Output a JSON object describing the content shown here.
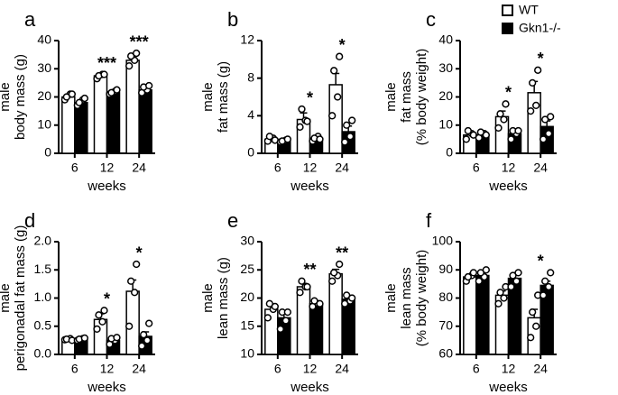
{
  "chart_data": [
    {
      "type": "bar",
      "panel": "a",
      "ylabel": [
        "male",
        "body mass (g)"
      ],
      "xlabel": "weeks",
      "categories": [
        "6",
        "12",
        "24"
      ],
      "ylim": [
        0,
        40
      ],
      "yticks": [
        0,
        10,
        20,
        30,
        40
      ],
      "series": [
        {
          "name": "WT",
          "color": "#ffffff",
          "values": [
            20,
            27.5,
            33
          ],
          "errors": [
            0.6,
            0.5,
            1.2
          ],
          "points": [
            [
              19,
              21,
              20,
              21
            ],
            [
              26.5,
              28,
              27.5,
              28
            ],
            [
              31,
              33,
              34.5,
              35.5
            ]
          ]
        },
        {
          "name": "Gkn1-/-",
          "color": "#000000",
          "values": [
            18,
            21.5,
            22.5
          ],
          "errors": [
            0.7,
            0.4,
            0.7
          ],
          "points": [
            [
              17,
              19,
              18,
              19.5
            ],
            [
              21,
              22,
              21.5,
              22.5
            ],
            [
              21.5,
              22.5,
              23.5,
              24
            ]
          ]
        }
      ],
      "annotations": [
        {
          "x": "12",
          "text": "***"
        },
        {
          "x": "24",
          "text": "***"
        }
      ]
    },
    {
      "type": "bar",
      "panel": "b",
      "ylabel": [
        "male",
        "fat mass (g)"
      ],
      "xlabel": "weeks",
      "categories": [
        "6",
        "12",
        "24"
      ],
      "ylim": [
        0,
        12
      ],
      "yticks": [
        0,
        4,
        8,
        12
      ],
      "series": [
        {
          "name": "WT",
          "color": "#ffffff",
          "values": [
            1.5,
            3.6,
            7.3
          ],
          "errors": [
            0.15,
            0.7,
            1.2
          ],
          "points": [
            [
              1.3,
              1.6,
              1.8,
              1.4
            ],
            [
              2.8,
              3.5,
              4.7,
              3.4
            ],
            [
              4,
              6,
              8.8,
              10.3
            ]
          ]
        },
        {
          "name": "Gkn1-/-",
          "color": "#000000",
          "values": [
            1.3,
            1.6,
            2.3
          ],
          "errors": [
            0.1,
            0.2,
            0.6
          ],
          "points": [
            [
              1.2,
              1.4,
              1.3,
              1.5
            ],
            [
              1.3,
              1.8,
              1.6,
              1.5
            ],
            [
              1.2,
              1.8,
              3,
              3.5
            ]
          ]
        }
      ],
      "annotations": [
        {
          "x": "12",
          "text": "*"
        },
        {
          "x": "24",
          "text": "*"
        }
      ]
    },
    {
      "type": "bar",
      "panel": "c",
      "ylabel": [
        "male",
        "fat mass",
        "(% body weight)"
      ],
      "xlabel": "weeks",
      "categories": [
        "6",
        "12",
        "24"
      ],
      "ylim": [
        0,
        40
      ],
      "yticks": [
        0,
        10,
        20,
        30,
        40
      ],
      "series": [
        {
          "name": "WT",
          "color": "#ffffff",
          "values": [
            6.5,
            13,
            21.5
          ],
          "errors": [
            1,
            2,
            4
          ],
          "points": [
            [
              5,
              7,
              8,
              6.5
            ],
            [
              9,
              12,
              14,
              17.5
            ],
            [
              15,
              17,
              25,
              29.5
            ]
          ]
        },
        {
          "name": "Gkn1-/-",
          "color": "#000000",
          "values": [
            6.5,
            7,
            9.5
          ],
          "errors": [
            0.8,
            1,
            2
          ],
          "points": [
            [
              5.5,
              7,
              7.5,
              6.5
            ],
            [
              5,
              7,
              8,
              8
            ],
            [
              5,
              7,
              12,
              13
            ]
          ]
        }
      ],
      "annotations": [
        {
          "x": "12",
          "text": "*"
        },
        {
          "x": "24",
          "text": "*"
        }
      ]
    },
    {
      "type": "bar",
      "panel": "d",
      "ylabel": [
        "male",
        "perigonadal fat mass (g)"
      ],
      "xlabel": "weeks",
      "categories": [
        "6",
        "12",
        "24"
      ],
      "ylim": [
        0,
        2
      ],
      "yticks": [
        {
          "value": 0,
          "label": "0.0"
        },
        {
          "value": 0.5,
          "label": "0.5"
        },
        {
          "value": 1,
          "label": "1.0"
        },
        {
          "value": 1.5,
          "label": "1.5"
        },
        {
          "value": 2,
          "label": "2.0"
        }
      ],
      "series": [
        {
          "name": "WT",
          "color": "#ffffff",
          "values": [
            0.27,
            0.62,
            1.12
          ],
          "errors": [
            0.02,
            0.1,
            0.2
          ],
          "points": [
            [
              0.26,
              0.28,
              0.27,
              0.25
            ],
            [
              0.45,
              0.58,
              0.7,
              0.78
            ],
            [
              0.5,
              1.1,
              1.3,
              1.6
            ]
          ]
        },
        {
          "name": "Gkn1-/-",
          "color": "#000000",
          "values": [
            0.27,
            0.25,
            0.32
          ],
          "errors": [
            0.02,
            0.04,
            0.08
          ],
          "points": [
            [
              0.25,
              0.28,
              0.27,
              0.29
            ],
            [
              0.18,
              0.25,
              0.28,
              0.3
            ],
            [
              0.15,
              0.25,
              0.35,
              0.55
            ]
          ]
        }
      ],
      "annotations": [
        {
          "x": "12",
          "text": "*"
        },
        {
          "x": "24",
          "text": "*"
        }
      ]
    },
    {
      "type": "bar",
      "panel": "e",
      "ylabel": [
        "male",
        "lean mass (g)"
      ],
      "xlabel": "weeks",
      "categories": [
        "6",
        "12",
        "24"
      ],
      "ylim": [
        10,
        30
      ],
      "yticks": [
        10,
        15,
        20,
        25,
        30
      ],
      "series": [
        {
          "name": "WT",
          "color": "#ffffff",
          "values": [
            18,
            22,
            24.3
          ],
          "errors": [
            0.8,
            0.6,
            0.8
          ],
          "points": [
            [
              16.5,
              18,
              19,
              18.5
            ],
            [
              21,
              22,
              23,
              22
            ],
            [
              23,
              24,
              24.5,
              26
            ]
          ]
        },
        {
          "name": "Gkn1-/-",
          "color": "#000000",
          "values": [
            16.5,
            19,
            19.8
          ],
          "errors": [
            0.9,
            0.4,
            0.4
          ],
          "points": [
            [
              14.5,
              16,
              17.5,
              17.5
            ],
            [
              18.5,
              19,
              19.5,
              19
            ],
            [
              19,
              19.5,
              20.5,
              20
            ]
          ]
        }
      ],
      "annotations": [
        {
          "x": "12",
          "text": "**"
        },
        {
          "x": "24",
          "text": "**"
        }
      ]
    },
    {
      "type": "bar",
      "panel": "f",
      "ylabel": [
        "male",
        "lean mass",
        "(% body weight)"
      ],
      "xlabel": "weeks",
      "categories": [
        "6",
        "12",
        "24"
      ],
      "ylim": [
        60,
        100
      ],
      "yticks": [
        60,
        70,
        80,
        90,
        100
      ],
      "series": [
        {
          "name": "WT",
          "color": "#ffffff",
          "values": [
            87.5,
            81,
            73
          ],
          "errors": [
            1,
            1.5,
            3
          ],
          "points": [
            [
              86,
              88,
              87.5,
              89
            ],
            [
              78,
              80,
              82,
              84
            ],
            [
              66,
              70,
              75,
              81
            ]
          ]
        },
        {
          "name": "Gkn1-/-",
          "color": "#000000",
          "values": [
            88,
            87,
            84.5
          ],
          "errors": [
            1,
            1.5,
            1.5
          ],
          "points": [
            [
              86,
              87.5,
              89,
              90
            ],
            [
              84,
              86,
              88,
              89
            ],
            [
              81,
              84,
              86,
              89
            ]
          ]
        }
      ],
      "annotations": [
        {
          "x": "24",
          "text": "*"
        }
      ]
    }
  ]
}
